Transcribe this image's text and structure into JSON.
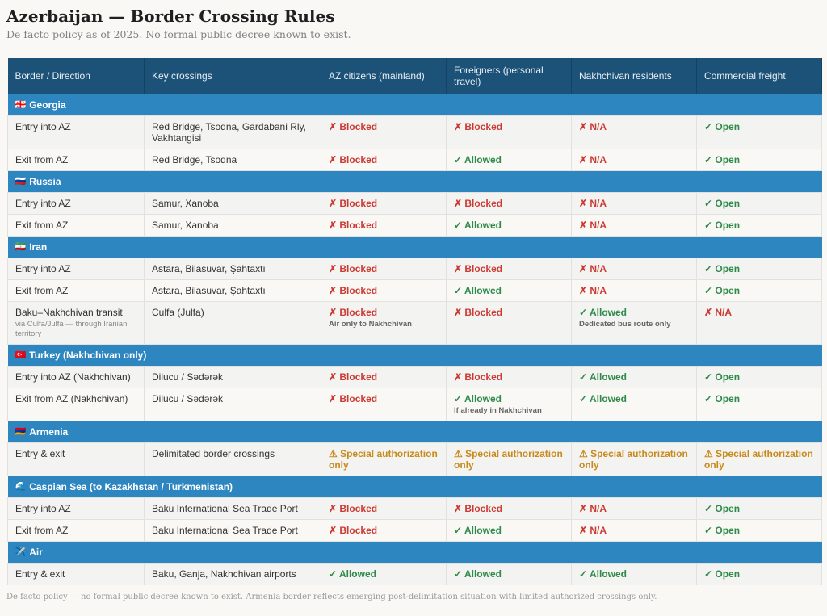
{
  "title": "Azerbaijan — Border Crossing Rules",
  "subtitle": "De facto policy as of 2025. No formal public decree known to exist.",
  "columns": [
    "Border / Direction",
    "Key crossings",
    "AZ citizens (mainland)",
    "Foreigners (personal travel)",
    "Nakhchivan residents",
    "Commercial freight"
  ],
  "colors": {
    "header": "#1c5277",
    "group": "#2d86c0",
    "blocked": "#cc3b33",
    "allowed": "#2e8b4a",
    "special": "#c98a1c"
  },
  "groups": [
    {
      "icon": "🇬🇪",
      "name": "Georgia",
      "rows": [
        {
          "dir": "Entry into AZ",
          "cross": "Red Bridge, Tsodna, Gardabani Rly, Vakhtangisi",
          "cells": [
            {
              "t": "blocked",
              "l": "✗ Blocked"
            },
            {
              "t": "blocked",
              "l": "✗ Blocked"
            },
            {
              "t": "blocked",
              "l": "✗ N/A"
            },
            {
              "t": "allowed",
              "l": "✓ Open"
            }
          ]
        },
        {
          "dir": "Exit from AZ",
          "cross": "Red Bridge, Tsodna",
          "cells": [
            {
              "t": "blocked",
              "l": "✗ Blocked"
            },
            {
              "t": "allowed",
              "l": "✓ Allowed"
            },
            {
              "t": "blocked",
              "l": "✗ N/A"
            },
            {
              "t": "allowed",
              "l": "✓ Open"
            }
          ]
        }
      ]
    },
    {
      "icon": "🇷🇺",
      "name": "Russia",
      "rows": [
        {
          "dir": "Entry into AZ",
          "cross": "Samur, Xanoba",
          "cells": [
            {
              "t": "blocked",
              "l": "✗ Blocked"
            },
            {
              "t": "blocked",
              "l": "✗ Blocked"
            },
            {
              "t": "blocked",
              "l": "✗ N/A"
            },
            {
              "t": "allowed",
              "l": "✓ Open"
            }
          ]
        },
        {
          "dir": "Exit from AZ",
          "cross": "Samur, Xanoba",
          "cells": [
            {
              "t": "blocked",
              "l": "✗ Blocked"
            },
            {
              "t": "allowed",
              "l": "✓ Allowed"
            },
            {
              "t": "blocked",
              "l": "✗ N/A"
            },
            {
              "t": "allowed",
              "l": "✓ Open"
            }
          ]
        }
      ]
    },
    {
      "icon": "🇮🇷",
      "name": "Iran",
      "rows": [
        {
          "dir": "Entry into AZ",
          "cross": "Astara, Bilasuvar, Şahtaxtı",
          "cells": [
            {
              "t": "blocked",
              "l": "✗ Blocked"
            },
            {
              "t": "blocked",
              "l": "✗ Blocked"
            },
            {
              "t": "blocked",
              "l": "✗ N/A"
            },
            {
              "t": "allowed",
              "l": "✓ Open"
            }
          ]
        },
        {
          "dir": "Exit from AZ",
          "cross": "Astara, Bilasuvar, Şahtaxtı",
          "cells": [
            {
              "t": "blocked",
              "l": "✗ Blocked"
            },
            {
              "t": "allowed",
              "l": "✓ Allowed"
            },
            {
              "t": "blocked",
              "l": "✗ N/A"
            },
            {
              "t": "allowed",
              "l": "✓ Open"
            }
          ]
        },
        {
          "dir": "Baku–Nakhchivan transit",
          "dir_note": "via Culfa/Julfa — through Iranian territory",
          "cross": "Culfa (Julfa)",
          "cells": [
            {
              "t": "blocked",
              "l": "✗ Blocked",
              "n": "Air only to Nakhchivan"
            },
            {
              "t": "blocked",
              "l": "✗ Blocked"
            },
            {
              "t": "allowed",
              "l": "✓ Allowed",
              "n": "Dedicated bus route only"
            },
            {
              "t": "blocked",
              "l": "✗ N/A"
            }
          ]
        }
      ]
    },
    {
      "icon": "🇹🇷",
      "name": "Turkey (Nakhchivan only)",
      "rows": [
        {
          "dir": "Entry into AZ (Nakhchivan)",
          "cross": "Dilucu / Sədərək",
          "cells": [
            {
              "t": "blocked",
              "l": "✗ Blocked"
            },
            {
              "t": "blocked",
              "l": "✗ Blocked"
            },
            {
              "t": "allowed",
              "l": "✓ Allowed"
            },
            {
              "t": "allowed",
              "l": "✓ Open"
            }
          ]
        },
        {
          "dir": "Exit from AZ (Nakhchivan)",
          "cross": "Dilucu / Sədərək",
          "cells": [
            {
              "t": "blocked",
              "l": "✗ Blocked"
            },
            {
              "t": "allowed",
              "l": "✓ Allowed",
              "n": "If already in Nakhchivan"
            },
            {
              "t": "allowed",
              "l": "✓ Allowed"
            },
            {
              "t": "allowed",
              "l": "✓ Open"
            }
          ]
        }
      ]
    },
    {
      "icon": "🇦🇲",
      "name": "Armenia",
      "rows": [
        {
          "dir": "Entry & exit",
          "cross": "Delimitated border crossings",
          "cells": [
            {
              "t": "special",
              "l": "⚠ Special authorization only"
            },
            {
              "t": "special",
              "l": "⚠ Special authorization only"
            },
            {
              "t": "special",
              "l": "⚠ Special authorization only"
            },
            {
              "t": "special",
              "l": "⚠ Special authorization only"
            }
          ]
        }
      ]
    },
    {
      "icon": "🌊",
      "name": "Caspian Sea (to Kazakhstan / Turkmenistan)",
      "rows": [
        {
          "dir": "Entry into AZ",
          "cross": "Baku International Sea Trade Port",
          "cells": [
            {
              "t": "blocked",
              "l": "✗ Blocked"
            },
            {
              "t": "blocked",
              "l": "✗ Blocked"
            },
            {
              "t": "blocked",
              "l": "✗ N/A"
            },
            {
              "t": "allowed",
              "l": "✓ Open"
            }
          ]
        },
        {
          "dir": "Exit from AZ",
          "cross": "Baku International Sea Trade Port",
          "cells": [
            {
              "t": "blocked",
              "l": "✗ Blocked"
            },
            {
              "t": "allowed",
              "l": "✓ Allowed"
            },
            {
              "t": "blocked",
              "l": "✗ N/A"
            },
            {
              "t": "allowed",
              "l": "✓ Open"
            }
          ]
        }
      ]
    },
    {
      "icon": "✈️",
      "name": "Air",
      "rows": [
        {
          "dir": "Entry & exit",
          "cross": "Baku, Ganja, Nakhchivan airports",
          "cells": [
            {
              "t": "allowed",
              "l": "✓ Allowed"
            },
            {
              "t": "allowed",
              "l": "✓ Allowed"
            },
            {
              "t": "allowed",
              "l": "✓ Allowed"
            },
            {
              "t": "allowed",
              "l": "✓ Open"
            }
          ]
        }
      ]
    }
  ],
  "footer": "De facto policy — no formal public decree known to exist. Armenia border reflects emerging post-delimitation situation with limited authorized crossings only."
}
